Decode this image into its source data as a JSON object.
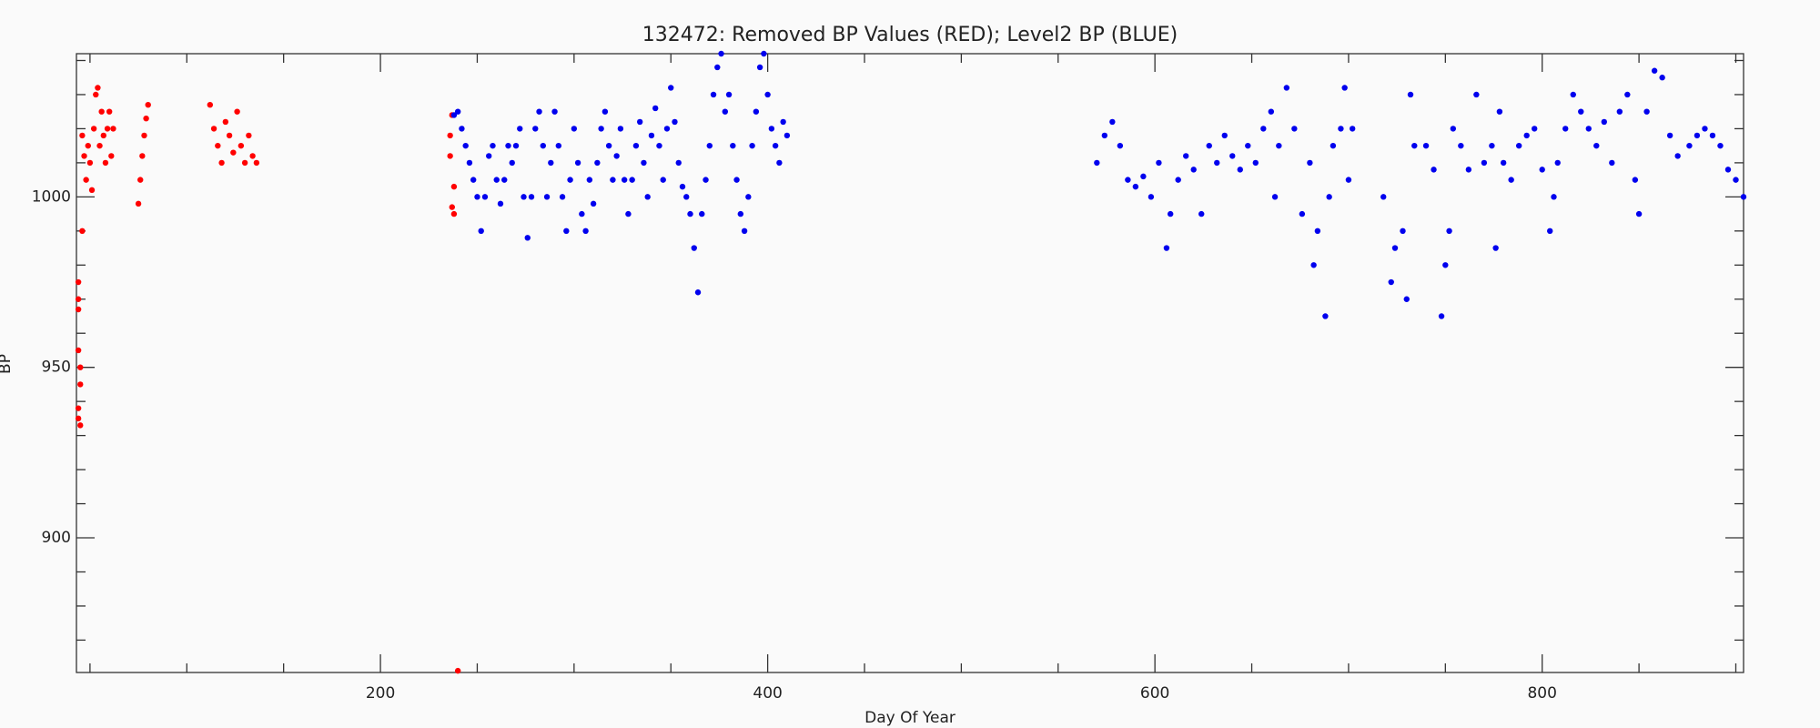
{
  "chart_data": {
    "type": "scatter",
    "title": "132472: Removed BP Values (RED); Level2 BP (BLUE)",
    "x_label": "Day Of Year",
    "y_label": "BP",
    "xlim": [
      43,
      904
    ],
    "ylim": [
      860.5,
      1042
    ],
    "xticks": [
      200,
      400,
      600,
      800
    ],
    "yticks": [
      900,
      950,
      1000
    ],
    "xminorticks": [
      50,
      100,
      150,
      250,
      300,
      350,
      450,
      500,
      550,
      650,
      700,
      750,
      850,
      900
    ],
    "yminorticks": [
      870,
      880,
      890,
      910,
      920,
      930,
      940,
      960,
      970,
      980,
      990,
      1010,
      1020,
      1030,
      1040
    ],
    "grid": false,
    "series": [
      {
        "color": "#ff0000",
        "x": [
          44,
          44,
          44,
          44,
          45,
          45,
          44,
          44,
          45,
          46,
          46,
          47,
          48,
          49,
          50,
          51,
          52,
          53,
          54,
          55,
          56,
          57,
          58,
          59,
          60,
          61,
          62,
          75,
          76,
          77,
          78,
          79,
          80,
          112,
          114,
          116,
          118,
          120,
          122,
          124,
          126,
          128,
          130,
          132,
          134,
          136,
          236,
          236,
          237,
          237,
          238,
          238,
          240
        ],
        "values": [
          975,
          970,
          967,
          955,
          950,
          945,
          938,
          935,
          933,
          990,
          1018,
          1012,
          1005,
          1015,
          1010,
          1002,
          1020,
          1030,
          1032,
          1015,
          1025,
          1018,
          1010,
          1020,
          1025,
          1012,
          1020,
          998,
          1005,
          1012,
          1018,
          1023,
          1027,
          1027,
          1020,
          1015,
          1010,
          1022,
          1018,
          1013,
          1025,
          1015,
          1010,
          1018,
          1012,
          1010,
          1012,
          1018,
          1024,
          997,
          1003,
          995,
          861
        ]
      },
      {
        "color": "#0000ee",
        "x": [
          238,
          240,
          242,
          244,
          246,
          248,
          250,
          252,
          254,
          256,
          258,
          260,
          262,
          264,
          266,
          268,
          270,
          272,
          274,
          276,
          278,
          280,
          282,
          284,
          286,
          288,
          290,
          292,
          294,
          296,
          298,
          300,
          302,
          304,
          306,
          308,
          310,
          312,
          314,
          316,
          318,
          320,
          322,
          324,
          326,
          328,
          330,
          332,
          334,
          336,
          338,
          340,
          342,
          344,
          346,
          348,
          350,
          352,
          354,
          356,
          358,
          360,
          362,
          364,
          366,
          368,
          370,
          372,
          374,
          376,
          378,
          380,
          382,
          384,
          386,
          388,
          390,
          392,
          394,
          396,
          398,
          400,
          402,
          404,
          406,
          408,
          410,
          570,
          574,
          578,
          582,
          586,
          590,
          594,
          598,
          602,
          606,
          608,
          612,
          616,
          620,
          624,
          628,
          632,
          636,
          640,
          644,
          648,
          652,
          656,
          660,
          662,
          664,
          668,
          672,
          676,
          680,
          682,
          684,
          688,
          690,
          692,
          696,
          698,
          700,
          702,
          718,
          722,
          724,
          728,
          730,
          732,
          734,
          740,
          744,
          748,
          750,
          752,
          754,
          758,
          762,
          766,
          770,
          774,
          776,
          778,
          780,
          784,
          788,
          792,
          796,
          800,
          804,
          806,
          808,
          812,
          816,
          820,
          824,
          828,
          832,
          836,
          840,
          844,
          848,
          850,
          854,
          858,
          862,
          866,
          870,
          876,
          880,
          884,
          888,
          892,
          896,
          900,
          904
        ],
        "values": [
          1024,
          1025,
          1020,
          1015,
          1010,
          1005,
          1000,
          990,
          1000,
          1012,
          1015,
          1005,
          998,
          1005,
          1015,
          1010,
          1015,
          1020,
          1000,
          988,
          1000,
          1020,
          1025,
          1015,
          1000,
          1010,
          1025,
          1015,
          1000,
          990,
          1005,
          1020,
          1010,
          995,
          990,
          1005,
          998,
          1010,
          1020,
          1025,
          1015,
          1005,
          1012,
          1020,
          1005,
          995,
          1005,
          1015,
          1022,
          1010,
          1000,
          1018,
          1026,
          1015,
          1005,
          1020,
          1032,
          1022,
          1010,
          1003,
          1000,
          995,
          985,
          972,
          995,
          1005,
          1015,
          1030,
          1038,
          1042,
          1025,
          1030,
          1015,
          1005,
          995,
          990,
          1000,
          1015,
          1025,
          1038,
          1042,
          1030,
          1020,
          1015,
          1010,
          1022,
          1018,
          1010,
          1018,
          1022,
          1015,
          1005,
          1003,
          1006,
          1000,
          1010,
          985,
          995,
          1005,
          1012,
          1008,
          995,
          1015,
          1010,
          1018,
          1012,
          1008,
          1015,
          1010,
          1020,
          1025,
          1000,
          1015,
          1032,
          1020,
          995,
          1010,
          980,
          990,
          965,
          1000,
          1015,
          1020,
          1032,
          1005,
          1020,
          1000,
          975,
          985,
          990,
          970,
          1030,
          1015,
          1015,
          1008,
          965,
          980,
          990,
          1020,
          1015,
          1008,
          1030,
          1010,
          1015,
          985,
          1025,
          1010,
          1005,
          1015,
          1018,
          1020,
          1008,
          990,
          1000,
          1010,
          1020,
          1030,
          1025,
          1020,
          1015,
          1022,
          1010,
          1025,
          1030,
          1005,
          995,
          1025,
          1037,
          1035,
          1018,
          1012,
          1015,
          1018,
          1020,
          1018,
          1015,
          1008,
          1005,
          1000
        ]
      }
    ]
  }
}
